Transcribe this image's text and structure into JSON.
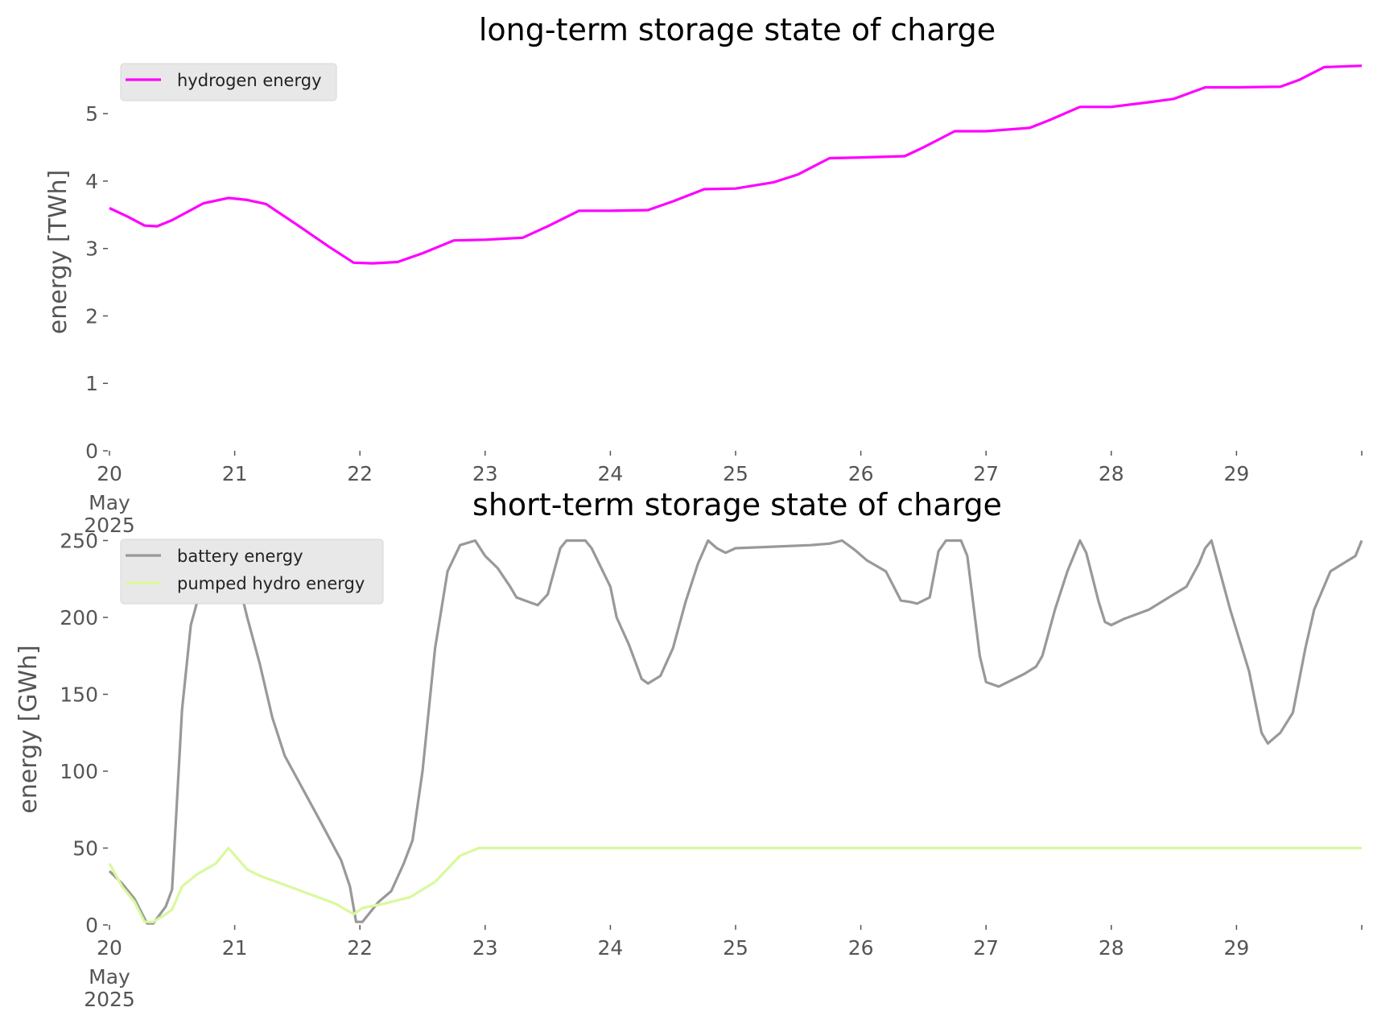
{
  "chart_data": [
    {
      "type": "line",
      "title": "long-term storage state of charge",
      "ylabel": "energy [TWh]",
      "xlabel": "",
      "x_range_days": [
        20,
        30
      ],
      "ylim": [
        0,
        5.85
      ],
      "grid": false,
      "legend_position": "top-left",
      "x_ticks": [
        {
          "value": 20,
          "label": "20",
          "sublabel": "May",
          "sublabel2": "2025"
        },
        {
          "value": 21,
          "label": "21"
        },
        {
          "value": 22,
          "label": "22"
        },
        {
          "value": 23,
          "label": "23"
        },
        {
          "value": 24,
          "label": "24"
        },
        {
          "value": 25,
          "label": "25"
        },
        {
          "value": 26,
          "label": "26"
        },
        {
          "value": 27,
          "label": "27"
        },
        {
          "value": 28,
          "label": "28"
        },
        {
          "value": 29,
          "label": "29"
        }
      ],
      "y_ticks": [
        {
          "value": 0,
          "label": "0"
        },
        {
          "value": 1,
          "label": "1"
        },
        {
          "value": 2,
          "label": "2"
        },
        {
          "value": 3,
          "label": "3"
        },
        {
          "value": 4,
          "label": "4"
        },
        {
          "value": 5,
          "label": "5"
        }
      ],
      "series": [
        {
          "name": "hydrogen energy",
          "color": "#ff00ff",
          "points": [
            [
              20.0,
              3.6
            ],
            [
              20.15,
              3.47
            ],
            [
              20.28,
              3.34
            ],
            [
              20.38,
              3.33
            ],
            [
              20.5,
              3.42
            ],
            [
              20.75,
              3.67
            ],
            [
              20.95,
              3.75
            ],
            [
              21.1,
              3.72
            ],
            [
              21.25,
              3.66
            ],
            [
              21.5,
              3.35
            ],
            [
              21.75,
              3.03
            ],
            [
              21.95,
              2.79
            ],
            [
              22.1,
              2.78
            ],
            [
              22.3,
              2.8
            ],
            [
              22.5,
              2.93
            ],
            [
              22.75,
              3.12
            ],
            [
              23.0,
              3.13
            ],
            [
              23.3,
              3.16
            ],
            [
              23.5,
              3.33
            ],
            [
              23.75,
              3.56
            ],
            [
              24.0,
              3.56
            ],
            [
              24.3,
              3.57
            ],
            [
              24.5,
              3.7
            ],
            [
              24.75,
              3.88
            ],
            [
              25.0,
              3.89
            ],
            [
              25.3,
              3.98
            ],
            [
              25.5,
              4.1
            ],
            [
              25.75,
              4.34
            ],
            [
              26.0,
              4.35
            ],
            [
              26.35,
              4.37
            ],
            [
              26.5,
              4.5
            ],
            [
              26.75,
              4.74
            ],
            [
              27.0,
              4.74
            ],
            [
              27.35,
              4.79
            ],
            [
              27.5,
              4.9
            ],
            [
              27.75,
              5.1
            ],
            [
              28.0,
              5.1
            ],
            [
              28.3,
              5.17
            ],
            [
              28.5,
              5.22
            ],
            [
              28.75,
              5.39
            ],
            [
              29.0,
              5.39
            ],
            [
              29.35,
              5.4
            ],
            [
              29.5,
              5.5
            ],
            [
              29.7,
              5.69
            ],
            [
              30.0,
              5.71
            ]
          ]
        }
      ]
    },
    {
      "type": "line",
      "title": "short-term storage state of charge",
      "ylabel": "energy [GWh]",
      "xlabel": "",
      "x_range_days": [
        20,
        30
      ],
      "ylim": [
        0,
        256
      ],
      "grid": false,
      "legend_position": "top-left",
      "x_ticks": [
        {
          "value": 20,
          "label": "20",
          "sublabel": "May",
          "sublabel2": "2025"
        },
        {
          "value": 21,
          "label": "21"
        },
        {
          "value": 22,
          "label": "22"
        },
        {
          "value": 23,
          "label": "23"
        },
        {
          "value": 24,
          "label": "24"
        },
        {
          "value": 25,
          "label": "25"
        },
        {
          "value": 26,
          "label": "26"
        },
        {
          "value": 27,
          "label": "27"
        },
        {
          "value": 28,
          "label": "28"
        },
        {
          "value": 29,
          "label": "29"
        }
      ],
      "y_ticks": [
        {
          "value": 0,
          "label": "0"
        },
        {
          "value": 50,
          "label": "50"
        },
        {
          "value": 100,
          "label": "100"
        },
        {
          "value": 150,
          "label": "150"
        },
        {
          "value": 200,
          "label": "200"
        },
        {
          "value": 250,
          "label": "250"
        }
      ],
      "series": [
        {
          "name": "battery energy",
          "color": "#999999",
          "points": [
            [
              20.0,
              35
            ],
            [
              20.1,
              27
            ],
            [
              20.2,
              17
            ],
            [
              20.3,
              1
            ],
            [
              20.35,
              1
            ],
            [
              20.45,
              12
            ],
            [
              20.5,
              23
            ],
            [
              20.58,
              140
            ],
            [
              20.65,
              195
            ],
            [
              20.7,
              210
            ],
            [
              20.8,
              225
            ],
            [
              20.95,
              250
            ],
            [
              21.1,
              200
            ],
            [
              21.2,
              170
            ],
            [
              21.3,
              135
            ],
            [
              21.4,
              110
            ],
            [
              21.5,
              95
            ],
            [
              21.7,
              65
            ],
            [
              21.85,
              42
            ],
            [
              21.92,
              25
            ],
            [
              21.97,
              2
            ],
            [
              22.02,
              2
            ],
            [
              22.15,
              15
            ],
            [
              22.25,
              22
            ],
            [
              22.35,
              40
            ],
            [
              22.42,
              55
            ],
            [
              22.5,
              100
            ],
            [
              22.6,
              180
            ],
            [
              22.7,
              230
            ],
            [
              22.8,
              247
            ],
            [
              22.92,
              250
            ],
            [
              23.0,
              240
            ],
            [
              23.1,
              232
            ],
            [
              23.2,
              220
            ],
            [
              23.25,
              213
            ],
            [
              23.35,
              210
            ],
            [
              23.42,
              208
            ],
            [
              23.5,
              215
            ],
            [
              23.6,
              245
            ],
            [
              23.65,
              250
            ],
            [
              23.8,
              250
            ],
            [
              23.85,
              245
            ],
            [
              24.0,
              220
            ],
            [
              24.05,
              200
            ],
            [
              24.15,
              182
            ],
            [
              24.25,
              160
            ],
            [
              24.3,
              157
            ],
            [
              24.4,
              162
            ],
            [
              24.5,
              180
            ],
            [
              24.6,
              210
            ],
            [
              24.7,
              235
            ],
            [
              24.78,
              250
            ],
            [
              24.85,
              245
            ],
            [
              24.92,
              242
            ],
            [
              25.0,
              245
            ],
            [
              25.3,
              246
            ],
            [
              25.6,
              247
            ],
            [
              25.75,
              248
            ],
            [
              25.85,
              250
            ],
            [
              25.95,
              244
            ],
            [
              26.05,
              237
            ],
            [
              26.2,
              230
            ],
            [
              26.25,
              222
            ],
            [
              26.32,
              211
            ],
            [
              26.4,
              210
            ],
            [
              26.45,
              209
            ],
            [
              26.55,
              213
            ],
            [
              26.62,
              243
            ],
            [
              26.68,
              250
            ],
            [
              26.8,
              250
            ],
            [
              26.85,
              240
            ],
            [
              26.95,
              175
            ],
            [
              27.0,
              158
            ],
            [
              27.1,
              155
            ],
            [
              27.3,
              163
            ],
            [
              27.4,
              168
            ],
            [
              27.45,
              175
            ],
            [
              27.55,
              205
            ],
            [
              27.65,
              230
            ],
            [
              27.75,
              250
            ],
            [
              27.8,
              242
            ],
            [
              27.9,
              210
            ],
            [
              27.95,
              197
            ],
            [
              28.0,
              195
            ],
            [
              28.1,
              199
            ],
            [
              28.3,
              205
            ],
            [
              28.5,
              215
            ],
            [
              28.6,
              220
            ],
            [
              28.7,
              235
            ],
            [
              28.75,
              245
            ],
            [
              28.8,
              250
            ],
            [
              28.95,
              205
            ],
            [
              29.1,
              165
            ],
            [
              29.2,
              125
            ],
            [
              29.25,
              118
            ],
            [
              29.35,
              125
            ],
            [
              29.45,
              138
            ],
            [
              29.55,
              180
            ],
            [
              29.62,
              205
            ],
            [
              29.75,
              230
            ],
            [
              29.85,
              235
            ],
            [
              29.95,
              240
            ],
            [
              30.0,
              250
            ]
          ]
        },
        {
          "name": "pumped hydro energy",
          "color": "#d9f99d",
          "points": [
            [
              20.0,
              40
            ],
            [
              20.1,
              25
            ],
            [
              20.2,
              15
            ],
            [
              20.28,
              2
            ],
            [
              20.35,
              2
            ],
            [
              20.45,
              7
            ],
            [
              20.5,
              10
            ],
            [
              20.58,
              25
            ],
            [
              20.7,
              33
            ],
            [
              20.85,
              40
            ],
            [
              20.95,
              50
            ],
            [
              21.1,
              36
            ],
            [
              21.2,
              32
            ],
            [
              21.4,
              26
            ],
            [
              21.6,
              20
            ],
            [
              21.8,
              14
            ],
            [
              21.95,
              7
            ],
            [
              22.02,
              11
            ],
            [
              22.2,
              14
            ],
            [
              22.4,
              18
            ],
            [
              22.6,
              28
            ],
            [
              22.8,
              45
            ],
            [
              22.95,
              50
            ],
            [
              23.5,
              50
            ],
            [
              24.5,
              50
            ],
            [
              25.5,
              50
            ],
            [
              26.5,
              50
            ],
            [
              27.5,
              50
            ],
            [
              28.5,
              50
            ],
            [
              29.5,
              50
            ],
            [
              30.0,
              50
            ]
          ]
        }
      ]
    }
  ]
}
